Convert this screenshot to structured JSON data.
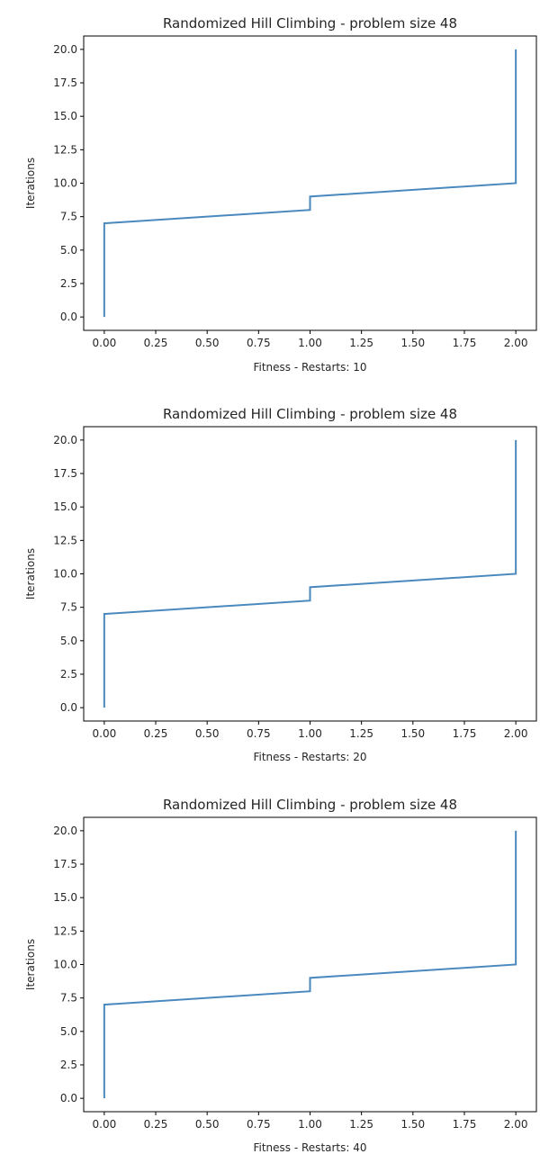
{
  "chart_data": [
    {
      "type": "line",
      "title": "Randomized Hill Climbing - problem size 48",
      "xlabel": "Fitness - Restarts: 10",
      "ylabel": "Iterations",
      "xlim": [
        -0.1,
        2.1
      ],
      "ylim": [
        -1.0,
        21.0
      ],
      "xticks": [
        "0.00",
        "0.25",
        "0.50",
        "0.75",
        "1.00",
        "1.25",
        "1.50",
        "1.75",
        "2.00"
      ],
      "yticks": [
        "0.0",
        "2.5",
        "5.0",
        "7.5",
        "10.0",
        "12.5",
        "15.0",
        "17.5",
        "20.0"
      ],
      "grid": false,
      "line_color": "#4a89be",
      "series": [
        {
          "x": [
            0,
            0,
            1,
            1,
            2,
            2
          ],
          "y": [
            0,
            7,
            8,
            9,
            10,
            20
          ]
        }
      ]
    },
    {
      "type": "line",
      "title": "Randomized Hill Climbing - problem size 48",
      "xlabel": "Fitness - Restarts: 20",
      "ylabel": "Iterations",
      "xlim": [
        -0.1,
        2.1
      ],
      "ylim": [
        -1.0,
        21.0
      ],
      "xticks": [
        "0.00",
        "0.25",
        "0.50",
        "0.75",
        "1.00",
        "1.25",
        "1.50",
        "1.75",
        "2.00"
      ],
      "yticks": [
        "0.0",
        "2.5",
        "5.0",
        "7.5",
        "10.0",
        "12.5",
        "15.0",
        "17.5",
        "20.0"
      ],
      "grid": false,
      "line_color": "#4a89be",
      "series": [
        {
          "x": [
            0,
            0,
            1,
            1,
            2,
            2
          ],
          "y": [
            0,
            7,
            8,
            9,
            10,
            20
          ]
        }
      ]
    },
    {
      "type": "line",
      "title": "Randomized Hill Climbing - problem size 48",
      "xlabel": "Fitness - Restarts: 40",
      "ylabel": "Iterations",
      "xlim": [
        -0.1,
        2.1
      ],
      "ylim": [
        -1.0,
        21.0
      ],
      "xticks": [
        "0.00",
        "0.25",
        "0.50",
        "0.75",
        "1.00",
        "1.25",
        "1.50",
        "1.75",
        "2.00"
      ],
      "yticks": [
        "0.0",
        "2.5",
        "5.0",
        "7.5",
        "10.0",
        "12.5",
        "15.0",
        "17.5",
        "20.0"
      ],
      "grid": false,
      "line_color": "#4a89be",
      "series": [
        {
          "x": [
            0,
            0,
            1,
            1,
            2,
            2
          ],
          "y": [
            0,
            7,
            8,
            9,
            10,
            20
          ]
        }
      ]
    }
  ]
}
